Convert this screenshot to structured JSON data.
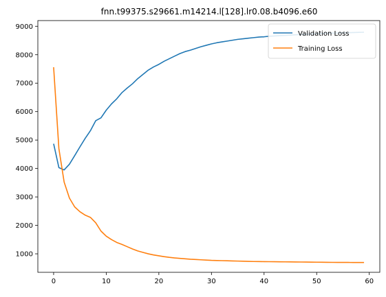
{
  "chart_data": {
    "type": "line",
    "title": "fnn.t99375.s29661.m14214.l[128].lr0.08.b4096.e60",
    "xlabel": "",
    "ylabel": "",
    "xlim": [
      -3,
      62
    ],
    "ylim": [
      350,
      9200
    ],
    "xticks": [
      0,
      10,
      20,
      30,
      40,
      50,
      60
    ],
    "yticks": [
      1000,
      2000,
      3000,
      4000,
      5000,
      6000,
      7000,
      8000,
      9000
    ],
    "grid": false,
    "legend": "top-right",
    "colors": {
      "validation": "#1f77b4",
      "training": "#ff7f0e"
    },
    "series": [
      {
        "name": "Validation Loss",
        "color": "#1f77b4",
        "x": [
          0,
          1,
          2,
          3,
          4,
          5,
          6,
          7,
          8,
          9,
          10,
          11,
          12,
          13,
          14,
          15,
          16,
          17,
          18,
          19,
          20,
          21,
          22,
          23,
          24,
          25,
          26,
          27,
          28,
          29,
          30,
          31,
          32,
          33,
          34,
          35,
          36,
          37,
          38,
          39,
          40,
          41,
          42,
          43,
          44,
          45,
          46,
          47,
          48,
          49,
          50,
          51,
          52,
          53,
          54,
          55,
          56,
          57,
          58,
          59
        ],
        "values": [
          4870,
          4030,
          3950,
          4150,
          4450,
          4760,
          5060,
          5330,
          5680,
          5780,
          6050,
          6270,
          6450,
          6670,
          6830,
          6980,
          7160,
          7310,
          7460,
          7570,
          7660,
          7770,
          7860,
          7950,
          8040,
          8110,
          8160,
          8220,
          8280,
          8330,
          8380,
          8420,
          8450,
          8480,
          8510,
          8540,
          8560,
          8580,
          8600,
          8620,
          8630,
          8650,
          8660,
          8670,
          8680,
          8690,
          8700,
          8710,
          8720,
          8730,
          8740,
          8750,
          8755,
          8760,
          8765,
          8770,
          8775,
          8780,
          8785,
          8790
        ]
      },
      {
        "name": "Training Loss",
        "color": "#ff7f0e",
        "x": [
          0,
          1,
          2,
          3,
          4,
          5,
          6,
          7,
          8,
          9,
          10,
          11,
          12,
          13,
          14,
          15,
          16,
          17,
          18,
          19,
          20,
          21,
          22,
          23,
          24,
          25,
          26,
          27,
          28,
          29,
          30,
          31,
          32,
          33,
          34,
          35,
          36,
          37,
          38,
          39,
          40,
          41,
          42,
          43,
          44,
          45,
          46,
          47,
          48,
          49,
          50,
          51,
          52,
          53,
          54,
          55,
          56,
          57,
          58,
          59
        ],
        "values": [
          7560,
          4700,
          3520,
          2960,
          2650,
          2480,
          2360,
          2280,
          2090,
          1800,
          1620,
          1500,
          1400,
          1330,
          1250,
          1170,
          1100,
          1050,
          1000,
          960,
          930,
          900,
          875,
          855,
          840,
          825,
          810,
          800,
          790,
          780,
          770,
          765,
          760,
          755,
          750,
          745,
          740,
          735,
          730,
          728,
          726,
          724,
          722,
          720,
          718,
          716,
          714,
          712,
          710,
          708,
          706,
          704,
          702,
          700,
          699,
          698,
          697,
          696,
          695,
          694
        ]
      }
    ]
  }
}
